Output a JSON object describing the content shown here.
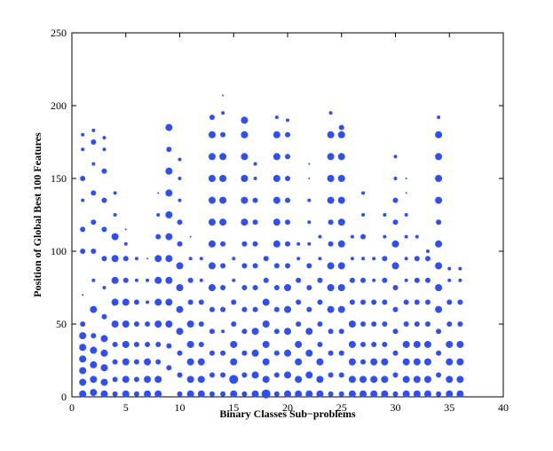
{
  "chart_data": {
    "type": "bubble",
    "x_label": "Binary Classes Sub−problems",
    "y_label": "Position of Global Best 100 Features",
    "color": "#2f4ff0",
    "xlim": [
      0,
      40
    ],
    "xticks": [
      0,
      5,
      10,
      15,
      20,
      25,
      30,
      35,
      40
    ],
    "ylim": [
      0,
      250
    ],
    "yticks": [
      0,
      50,
      100,
      150,
      200,
      250
    ],
    "series": [
      {
        "x": 1,
        "values": [
          2,
          10,
          18,
          26,
          34,
          42,
          50,
          70,
          100,
          115,
          135,
          150,
          170,
          180
        ],
        "sizes": [
          4,
          4,
          4,
          4,
          4,
          4,
          3,
          1,
          3,
          3,
          2,
          3,
          2,
          2
        ]
      },
      {
        "x": 2,
        "values": [
          3,
          12,
          22,
          32,
          42,
          60,
          80,
          100,
          120,
          140,
          160,
          175,
          183
        ],
        "sizes": [
          4,
          4,
          4,
          4,
          3,
          4,
          2,
          3,
          3,
          3,
          2,
          3,
          2
        ]
      },
      {
        "x": 3,
        "values": [
          2,
          10,
          20,
          30,
          40,
          55,
          75,
          95,
          115,
          135,
          155,
          170,
          178
        ],
        "sizes": [
          4,
          4,
          4,
          4,
          4,
          3,
          2,
          3,
          3,
          3,
          3,
          2,
          2
        ]
      },
      {
        "x": 4,
        "values": [
          2,
          12,
          24,
          36,
          50,
          65,
          80,
          95,
          110,
          125,
          140
        ],
        "sizes": [
          3,
          3,
          3,
          3,
          4,
          4,
          4,
          4,
          4,
          2,
          2
        ]
      },
      {
        "x": 5,
        "values": [
          2,
          12,
          24,
          36,
          50,
          65,
          80,
          95,
          105,
          115
        ],
        "sizes": [
          4,
          4,
          4,
          4,
          4,
          4,
          3,
          3,
          2,
          1
        ]
      },
      {
        "x": 6,
        "values": [
          2,
          12,
          24,
          36,
          50,
          65,
          80,
          95
        ],
        "sizes": [
          3,
          3,
          3,
          3,
          3,
          3,
          2,
          2
        ]
      },
      {
        "x": 7,
        "values": [
          2,
          12,
          24,
          36,
          50,
          65,
          80,
          95
        ],
        "sizes": [
          4,
          4,
          4,
          3,
          3,
          2,
          2,
          1
        ]
      },
      {
        "x": 8,
        "values": [
          2,
          12,
          24,
          36,
          50,
          65,
          80,
          95,
          110,
          125,
          140
        ],
        "sizes": [
          4,
          4,
          3,
          3,
          4,
          4,
          4,
          4,
          3,
          2,
          1
        ]
      },
      {
        "x": 9,
        "values": [
          20,
          35,
          50,
          65,
          80,
          95,
          110,
          125,
          140,
          155,
          170,
          185
        ],
        "sizes": [
          3,
          3,
          4,
          4,
          4,
          4,
          4,
          4,
          4,
          4,
          3,
          4
        ]
      },
      {
        "x": 10,
        "values": [
          2,
          15,
          30,
          45,
          60,
          75,
          90,
          105,
          120,
          135,
          150,
          163
        ],
        "sizes": [
          3,
          3,
          3,
          4,
          4,
          4,
          4,
          3,
          3,
          2,
          2,
          2
        ]
      },
      {
        "x": 11,
        "values": [
          2,
          12,
          24,
          36,
          50,
          65,
          80,
          95,
          110
        ],
        "sizes": [
          4,
          4,
          4,
          4,
          4,
          3,
          3,
          2,
          1
        ]
      },
      {
        "x": 12,
        "values": [
          2,
          12,
          24,
          36,
          50,
          65,
          80,
          95
        ],
        "sizes": [
          4,
          4,
          4,
          3,
          3,
          3,
          2,
          2
        ]
      },
      {
        "x": 13,
        "values": [
          2,
          15,
          30,
          45,
          60,
          75,
          90,
          105,
          120,
          135,
          150,
          165,
          180,
          192
        ],
        "sizes": [
          3,
          3,
          3,
          3,
          3,
          4,
          4,
          4,
          4,
          4,
          4,
          4,
          4,
          3
        ]
      },
      {
        "x": 14,
        "values": [
          2,
          15,
          30,
          45,
          60,
          75,
          90,
          105,
          120,
          135,
          150,
          165,
          180,
          195,
          207
        ],
        "sizes": [
          3,
          3,
          3,
          2,
          3,
          3,
          3,
          3,
          4,
          4,
          4,
          4,
          3,
          2,
          1
        ]
      },
      {
        "x": 15,
        "values": [
          2,
          12,
          24,
          36,
          50,
          65,
          80,
          95
        ],
        "sizes": [
          4,
          5,
          4,
          4,
          3,
          3,
          2,
          2
        ]
      },
      {
        "x": 16,
        "values": [
          2,
          15,
          30,
          45,
          60,
          75,
          90,
          105,
          120,
          135,
          150,
          165,
          180,
          190
        ],
        "sizes": [
          3,
          3,
          3,
          3,
          3,
          3,
          3,
          3,
          4,
          4,
          4,
          4,
          4,
          4
        ]
      },
      {
        "x": 17,
        "values": [
          2,
          15,
          30,
          45,
          60,
          75,
          90,
          105,
          120,
          135,
          150,
          160
        ],
        "sizes": [
          4,
          4,
          4,
          4,
          3,
          3,
          3,
          3,
          3,
          3,
          2,
          2
        ]
      },
      {
        "x": 18,
        "values": [
          2,
          12,
          24,
          36,
          50,
          65,
          80,
          95
        ],
        "sizes": [
          5,
          4,
          4,
          4,
          4,
          4,
          3,
          3
        ]
      },
      {
        "x": 19,
        "values": [
          2,
          15,
          30,
          45,
          60,
          75,
          90,
          105,
          120,
          135,
          150,
          165,
          180,
          192
        ],
        "sizes": [
          3,
          3,
          3,
          3,
          3,
          3,
          3,
          4,
          4,
          4,
          4,
          4,
          4,
          2
        ]
      },
      {
        "x": 20,
        "values": [
          2,
          15,
          30,
          45,
          60,
          75,
          90,
          105,
          120,
          135,
          150,
          165,
          180,
          190
        ],
        "sizes": [
          4,
          4,
          4,
          4,
          4,
          4,
          3,
          3,
          3,
          3,
          3,
          3,
          3,
          2
        ]
      },
      {
        "x": 21,
        "values": [
          2,
          12,
          24,
          36,
          50,
          65,
          80,
          95,
          105
        ],
        "sizes": [
          4,
          4,
          4,
          4,
          3,
          3,
          3,
          2,
          2
        ]
      },
      {
        "x": 22,
        "values": [
          2,
          15,
          30,
          45,
          60,
          75,
          90,
          105,
          120,
          135,
          150,
          160
        ],
        "sizes": [
          4,
          4,
          4,
          4,
          3,
          3,
          3,
          2,
          2,
          2,
          1,
          1
        ]
      },
      {
        "x": 23,
        "values": [
          2,
          12,
          24,
          36,
          50,
          65,
          80,
          95,
          110
        ],
        "sizes": [
          4,
          4,
          4,
          3,
          3,
          3,
          3,
          2,
          2
        ]
      },
      {
        "x": 24,
        "values": [
          2,
          15,
          30,
          45,
          60,
          75,
          90,
          105,
          120,
          135,
          150,
          165,
          180,
          195
        ],
        "sizes": [
          3,
          3,
          3,
          3,
          4,
          4,
          4,
          3,
          3,
          4,
          4,
          4,
          4,
          2
        ]
      },
      {
        "x": 25,
        "values": [
          2,
          15,
          30,
          45,
          60,
          75,
          90,
          105,
          120,
          135,
          150,
          165,
          180,
          185
        ],
        "sizes": [
          3,
          3,
          3,
          3,
          4,
          4,
          4,
          4,
          4,
          4,
          4,
          4,
          4,
          3
        ]
      },
      {
        "x": 26,
        "values": [
          2,
          12,
          24,
          36,
          50,
          65,
          80,
          95,
          110
        ],
        "sizes": [
          4,
          4,
          4,
          4,
          4,
          3,
          3,
          2,
          2
        ]
      },
      {
        "x": 27,
        "values": [
          2,
          12,
          24,
          36,
          50,
          65,
          80,
          95,
          110,
          125,
          140
        ],
        "sizes": [
          4,
          4,
          3,
          3,
          3,
          3,
          3,
          2,
          3,
          2,
          2
        ]
      },
      {
        "x": 28,
        "values": [
          2,
          12,
          24,
          36,
          50,
          65,
          80,
          95
        ],
        "sizes": [
          4,
          4,
          4,
          3,
          3,
          3,
          2,
          2
        ]
      },
      {
        "x": 29,
        "values": [
          2,
          12,
          24,
          36,
          50,
          65,
          80,
          95,
          110,
          125
        ],
        "sizes": [
          4,
          4,
          4,
          3,
          3,
          3,
          3,
          3,
          2,
          2
        ]
      },
      {
        "x": 30,
        "values": [
          2,
          15,
          30,
          45,
          60,
          75,
          90,
          105,
          120,
          135,
          150,
          165
        ],
        "sizes": [
          3,
          3,
          3,
          3,
          3,
          3,
          4,
          4,
          3,
          3,
          2,
          2
        ]
      },
      {
        "x": 31,
        "values": [
          2,
          12,
          24,
          36,
          50,
          65,
          80,
          95,
          110,
          125,
          140,
          150
        ],
        "sizes": [
          4,
          4,
          4,
          4,
          3,
          3,
          2,
          2,
          2,
          2,
          1,
          1
        ]
      },
      {
        "x": 32,
        "values": [
          2,
          12,
          24,
          36,
          50,
          65,
          80,
          95,
          110
        ],
        "sizes": [
          4,
          4,
          4,
          4,
          3,
          3,
          3,
          3,
          2
        ]
      },
      {
        "x": 33,
        "values": [
          2,
          12,
          24,
          36,
          50,
          65,
          80,
          95,
          100
        ],
        "sizes": [
          4,
          4,
          4,
          4,
          3,
          3,
          3,
          3,
          2
        ]
      },
      {
        "x": 34,
        "values": [
          2,
          15,
          30,
          45,
          60,
          75,
          90,
          105,
          120,
          135,
          150,
          165,
          180,
          192
        ],
        "sizes": [
          3,
          3,
          3,
          3,
          4,
          4,
          4,
          4,
          3,
          4,
          4,
          4,
          4,
          2
        ]
      },
      {
        "x": 35,
        "values": [
          2,
          12,
          24,
          36,
          50,
          65,
          80,
          88
        ],
        "sizes": [
          4,
          4,
          4,
          4,
          3,
          3,
          2,
          2
        ]
      },
      {
        "x": 36,
        "values": [
          2,
          12,
          24,
          36,
          50,
          65,
          80,
          88
        ],
        "sizes": [
          4,
          4,
          4,
          4,
          3,
          3,
          2,
          2
        ]
      }
    ]
  }
}
